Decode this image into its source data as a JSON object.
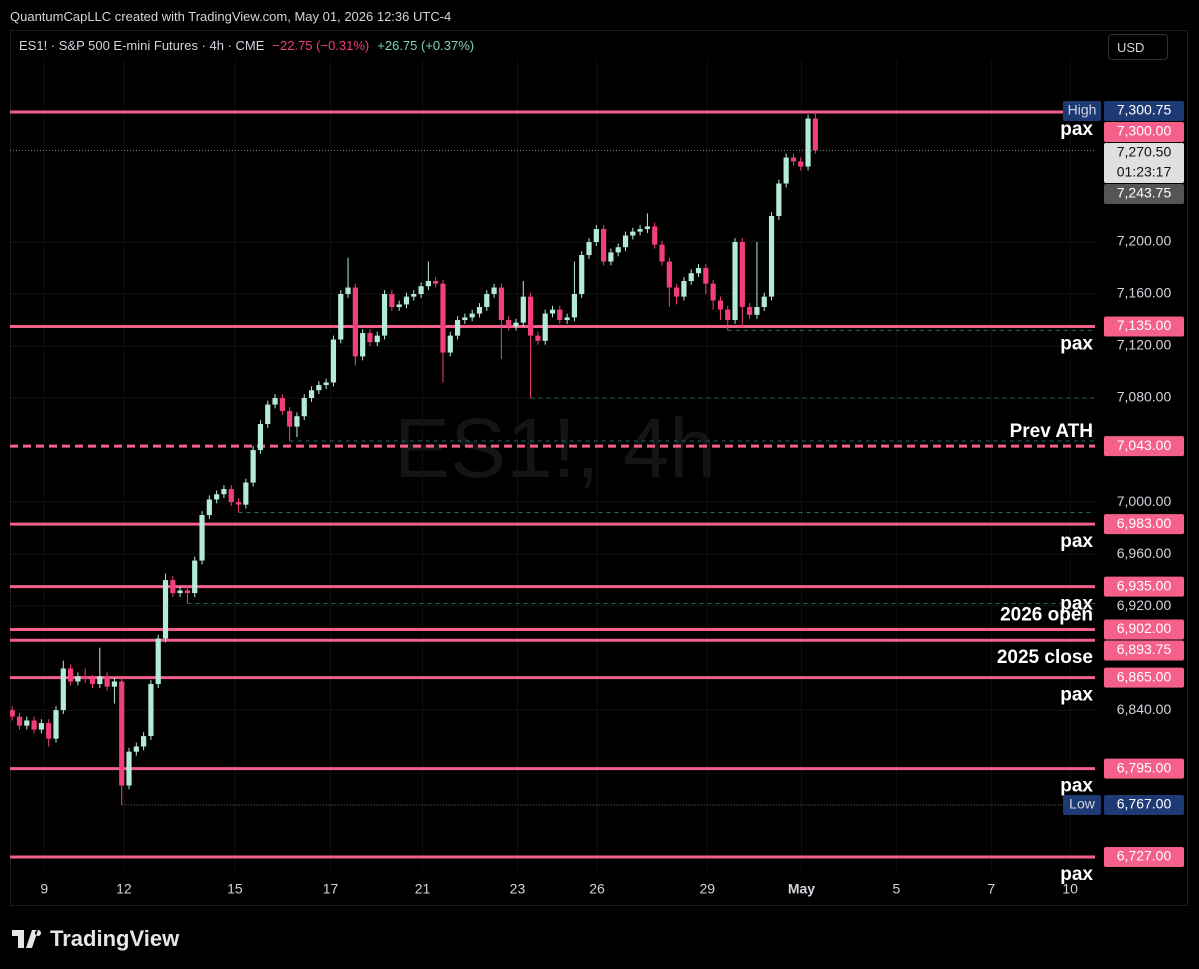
{
  "header": {
    "credit": "QuantumCapLLC created with TradingView.com, May 01, 2026 12:36 UTC-4",
    "symbol": "ES1! · S&P 500 E-mini Futures · 4h · CME",
    "change": "−22.75 (−0.31%)",
    "change2": "+26.75 (+0.37%)",
    "currency": "USD"
  },
  "footer": {
    "brand": "TradingView"
  },
  "chart_data": {
    "type": "candlestick",
    "watermark": "ES1!, 4h",
    "up_color": "#b4eadb",
    "down_color": "#f23e7a",
    "level_color": "#f4608a",
    "swing_color": "#1f6b66",
    "xlim": [
      -0.3,
      148.3
    ],
    "ylim": [
      6717,
      7340
    ],
    "grid": true,
    "xticks": [
      {
        "value": 4.4,
        "label": "9"
      },
      {
        "value": 15.3,
        "label": "12"
      },
      {
        "value": 30.5,
        "label": "15"
      },
      {
        "value": 43.6,
        "label": "17"
      },
      {
        "value": 56.2,
        "label": "21"
      },
      {
        "value": 69.2,
        "label": "23"
      },
      {
        "value": 80.1,
        "label": "26"
      },
      {
        "value": 95.2,
        "label": "29"
      },
      {
        "value": 108.1,
        "label": "May"
      },
      {
        "value": 121.1,
        "label": "5"
      },
      {
        "value": 134.1,
        "label": "7"
      },
      {
        "value": 144.9,
        "label": "10"
      }
    ],
    "yticks": [
      {
        "value": 7200,
        "label": "7,200.00"
      },
      {
        "value": 7160,
        "label": "7,160.00"
      },
      {
        "value": 7120,
        "label": "7,120.00"
      },
      {
        "value": 7080,
        "label": "7,080.00"
      },
      {
        "value": 7000,
        "label": "7,000.00"
      },
      {
        "value": 6960,
        "label": "6,960.00"
      },
      {
        "value": 6920,
        "label": "6,920.00"
      },
      {
        "value": 6840,
        "label": "6,840.00"
      }
    ],
    "open": [
      6840,
      6835,
      6828,
      6832,
      6825,
      6830,
      6818,
      6840,
      6872,
      6862,
      6866,
      6864,
      6860,
      6866,
      6858,
      6862,
      6782,
      6808,
      6812,
      6820,
      6860,
      6895,
      6940,
      6930,
      6932,
      6930,
      6955,
      6990,
      7002,
      7006,
      7010,
      7000,
      6998,
      7015,
      7040,
      7060,
      7075,
      7080,
      7070,
      7058,
      7066,
      7080,
      7086,
      7090,
      7092,
      7125,
      7160,
      7165,
      7112,
      7130,
      7123,
      7128,
      7160,
      7150,
      7152,
      7158,
      7160,
      7166,
      7170,
      7168,
      7115,
      7128,
      7140,
      7142,
      7145,
      7150,
      7160,
      7165,
      7140,
      7135,
      7138,
      7158,
      7128,
      7124,
      7145,
      7148,
      7140,
      7142,
      7160,
      7190,
      7200,
      7210,
      7185,
      7192,
      7196,
      7205,
      7208,
      7210,
      7212,
      7198,
      7185,
      7165,
      7158,
      7170,
      7176,
      7180,
      7168,
      7155,
      7148,
      7140,
      7200,
      7150,
      7144,
      7150,
      7158,
      7220,
      7245,
      7265,
      7262,
      7258,
      7295
    ],
    "high": [
      6843,
      6838,
      6835,
      6835,
      6833,
      6833,
      6843,
      6878,
      6875,
      6869,
      6872,
      6867,
      6888,
      6869,
      6865,
      6865,
      6811,
      6815,
      6823,
      6863,
      6898,
      6945,
      6943,
      6935,
      6935,
      6958,
      6993,
      7005,
      7009,
      7013,
      7013,
      7003,
      7018,
      7043,
      7063,
      7078,
      7083,
      7083,
      7073,
      7069,
      7083,
      7089,
      7093,
      7095,
      7128,
      7163,
      7188,
      7168,
      7133,
      7133,
      7131,
      7163,
      7163,
      7155,
      7161,
      7163,
      7169,
      7185,
      7173,
      7171,
      7131,
      7143,
      7145,
      7148,
      7153,
      7163,
      7168,
      7168,
      7143,
      7141,
      7170,
      7161,
      7131,
      7148,
      7151,
      7151,
      7145,
      7185,
      7193,
      7203,
      7213,
      7213,
      7195,
      7199,
      7208,
      7211,
      7213,
      7222,
      7215,
      7201,
      7188,
      7168,
      7173,
      7179,
      7183,
      7183,
      7171,
      7158,
      7151,
      7203,
      7203,
      7153,
      7200,
      7161,
      7223,
      7248,
      7268,
      7268,
      7265,
      7298,
      7300.75
    ],
    "low": [
      6832,
      6825,
      6825,
      6822,
      6822,
      6812,
      6815,
      6837,
      6859,
      6859,
      6861,
      6857,
      6857,
      6855,
      6845,
      6767,
      6779,
      6805,
      6809,
      6817,
      6857,
      6892,
      6927,
      6927,
      6922,
      6927,
      6952,
      6987,
      6999,
      7003,
      6997,
      6992,
      6995,
      7012,
      7037,
      7057,
      7072,
      7067,
      7047,
      7050,
      7063,
      7077,
      7083,
      7087,
      7089,
      7122,
      7157,
      7105,
      7109,
      7120,
      7120,
      7125,
      7147,
      7147,
      7149,
      7155,
      7157,
      7163,
      7165,
      7092,
      7112,
      7125,
      7137,
      7139,
      7142,
      7147,
      7157,
      7110,
      7132,
      7132,
      7135,
      7080,
      7121,
      7121,
      7142,
      7137,
      7137,
      7139,
      7157,
      7187,
      7197,
      7182,
      7182,
      7189,
      7193,
      7202,
      7205,
      7207,
      7195,
      7182,
      7150,
      7152,
      7155,
      7167,
      7173,
      7160,
      7148,
      7140,
      7132,
      7137,
      7134,
      7141,
      7141,
      7147,
      7155,
      7217,
      7242,
      7259,
      7255,
      7255,
      7268
    ],
    "close": [
      6835,
      6828,
      6832,
      6825,
      6830,
      6818,
      6840,
      6872,
      6862,
      6866,
      6864,
      6860,
      6866,
      6858,
      6862,
      6782,
      6808,
      6812,
      6820,
      6860,
      6895,
      6940,
      6930,
      6932,
      6930,
      6955,
      6990,
      7002,
      7006,
      7010,
      7000,
      6998,
      7015,
      7040,
      7060,
      7075,
      7080,
      7070,
      7058,
      7066,
      7080,
      7086,
      7090,
      7092,
      7125,
      7160,
      7165,
      7112,
      7130,
      7123,
      7128,
      7160,
      7150,
      7152,
      7158,
      7160,
      7166,
      7170,
      7168,
      7115,
      7128,
      7140,
      7142,
      7145,
      7150,
      7160,
      7165,
      7140,
      7135,
      7138,
      7158,
      7128,
      7124,
      7145,
      7148,
      7140,
      7142,
      7160,
      7190,
      7200,
      7210,
      7185,
      7192,
      7196,
      7205,
      7208,
      7210,
      7212,
      7198,
      7185,
      7165,
      7158,
      7170,
      7176,
      7180,
      7168,
      7155,
      7148,
      7140,
      7200,
      7150,
      7144,
      7150,
      7158,
      7220,
      7245,
      7265,
      7262,
      7258,
      7295,
      7270.5
    ],
    "levels": [
      {
        "value": 7300,
        "label": "7,300.00",
        "note": "pax",
        "note_position": "below"
      },
      {
        "value": 7135,
        "label": "7,135.00",
        "note": "pax",
        "note_position": "below"
      },
      {
        "value": 7043,
        "label": "7,043.00",
        "note": "Prev ATH",
        "note_position": "above",
        "dashed": true
      },
      {
        "value": 6983,
        "label": "6,983.00",
        "note": "pax",
        "note_position": "below"
      },
      {
        "value": 6935,
        "label": "6,935.00",
        "note": "pax",
        "note_position": "below"
      },
      {
        "value": 6902,
        "label": "6,902.00",
        "note": "2026 open",
        "note_position": "above"
      },
      {
        "value": 6893.75,
        "label": "6,893.75",
        "note": "2025 close",
        "note_position": "below"
      },
      {
        "value": 6865,
        "label": "6,865.00",
        "note": "pax",
        "note_position": "below"
      },
      {
        "value": 6795,
        "label": "6,795.00",
        "note": "pax",
        "note_position": "below"
      },
      {
        "value": 6727,
        "label": "6,727.00",
        "note": "pax",
        "note_position": "below"
      }
    ],
    "swing_lines": [
      {
        "value": 7132,
        "start": 98
      },
      {
        "value": 7080,
        "start": 71
      },
      {
        "value": 7047,
        "start": 38
      },
      {
        "value": 6992,
        "start": 31
      },
      {
        "value": 6922,
        "start": 24
      }
    ],
    "high_marker": {
      "tag": "High",
      "value": 7300.75,
      "label": "7,300.75"
    },
    "low_marker": {
      "tag": "Low",
      "value": 6767,
      "label": "6,767.00",
      "start": 15
    },
    "last_price": {
      "value": 7270.5,
      "label": "7,270.50",
      "countdown": "01:23:17"
    },
    "prev_close": {
      "value": 7243.75,
      "label": "7,243.75"
    }
  }
}
